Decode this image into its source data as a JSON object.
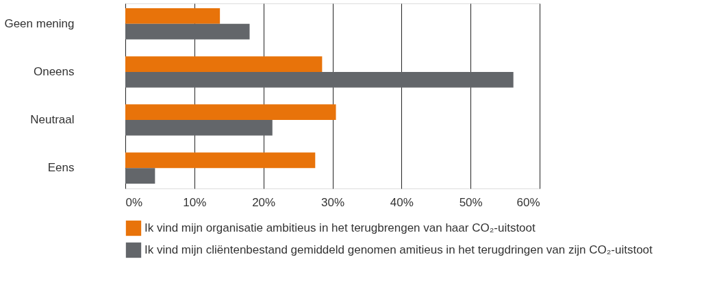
{
  "chart_data": {
    "type": "bar",
    "orientation": "horizontal",
    "categories": [
      "Geen mening",
      "Oneens",
      "Neutraal",
      "Eens"
    ],
    "series": [
      {
        "name": "Ik vind mijn organisatie ambitieus in het terugbrengen van haar CO₂-uitstoot",
        "color": "#e8730a",
        "values": [
          13.7,
          28.5,
          30.5,
          27.5
        ]
      },
      {
        "name": "Ik vind mijn cliëntenbestand gemiddeld genomen amitieus in het terugdringen van zijn CO₂-uitstoot",
        "color": "#63666a",
        "values": [
          18.0,
          56.2,
          21.3,
          4.3
        ]
      }
    ],
    "xlim": [
      0,
      60
    ],
    "xticks": [
      {
        "value": 0,
        "label": "0%"
      },
      {
        "value": 10,
        "label": "10%"
      },
      {
        "value": 20,
        "label": "20%"
      },
      {
        "value": 30,
        "label": "30%"
      },
      {
        "value": 40,
        "label": "40%"
      },
      {
        "value": 50,
        "label": "50%"
      },
      {
        "value": 60,
        "label": "60%"
      }
    ],
    "grid": "x",
    "legend": "bottom"
  }
}
